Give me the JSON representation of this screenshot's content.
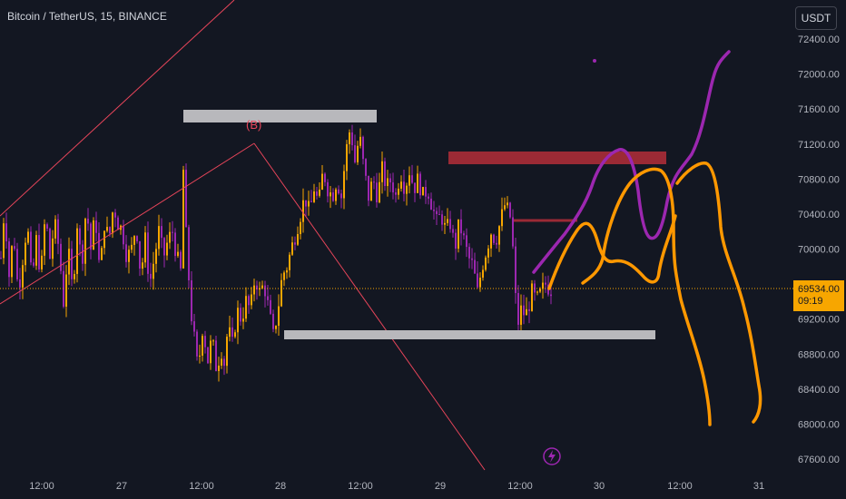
{
  "header": {
    "symbol_title": "Bitcoin / TetherUS, 15, BINANCE",
    "currency_button": "USDT"
  },
  "price_tag": {
    "price": "69534.00",
    "countdown": "09:19"
  },
  "annotations": {
    "wave_label": "(B)",
    "flash_icon": "lightning-icon"
  },
  "colors": {
    "background": "#131722",
    "candle_orange": "#f7a600",
    "candle_purple": "#9c27b0",
    "trendline": "#e8455a",
    "gray_box": "#b8b8bc",
    "red_box": "#9b2a35",
    "orange_path": "#ff9800",
    "purple_path": "#9c27b0",
    "axis_text": "#b2b5be"
  },
  "chart_data": {
    "type": "candlestick",
    "ylim": [
      67400,
      72600
    ],
    "y_ticks": [
      67600,
      68000,
      68400,
      68800,
      69200,
      69600,
      70000,
      70400,
      70800,
      71200,
      71600,
      72000,
      72400
    ],
    "y_tick_labels": [
      "67600.00",
      "68000.00",
      "68400.00",
      "68800.00",
      "69200.00",
      "69600.00",
      "70000.00",
      "70400.00",
      "70800.00",
      "71200.00",
      "71600.00",
      "72000.00",
      "72400.00"
    ],
    "x_tick_labels": [
      "12:00",
      "27",
      "12:00",
      "28",
      "12:00",
      "29",
      "12:00",
      "30",
      "12:00",
      "31"
    ],
    "current_price": 69534,
    "grid": false,
    "close_points": [
      [
        0,
        69900
      ],
      [
        4,
        70500
      ],
      [
        9,
        69700
      ],
      [
        14,
        70200
      ],
      [
        19,
        69500
      ],
      [
        24,
        69900
      ],
      [
        29,
        70300
      ],
      [
        34,
        69600
      ],
      [
        39,
        70100
      ],
      [
        44,
        69700
      ],
      [
        49,
        70400
      ],
      [
        54,
        69900
      ],
      [
        59,
        70300
      ],
      [
        64,
        70000
      ],
      [
        69,
        69400
      ],
      [
        74,
        70000
      ],
      [
        79,
        69500
      ],
      [
        84,
        70300
      ],
      [
        89,
        69800
      ],
      [
        94,
        70500
      ],
      [
        99,
        70000
      ],
      [
        104,
        70400
      ],
      [
        109,
        69700
      ],
      [
        114,
        70300
      ],
      [
        119,
        70100
      ],
      [
        124,
        70500
      ],
      [
        129,
        70300
      ],
      [
        134,
        70200
      ],
      [
        139,
        69900
      ],
      [
        144,
        70000
      ],
      [
        149,
        70300
      ],
      [
        154,
        69700
      ],
      [
        159,
        70100
      ],
      [
        164,
        69600
      ],
      [
        169,
        69900
      ],
      [
        174,
        70200
      ],
      [
        179,
        69900
      ],
      [
        184,
        70100
      ],
      [
        189,
        70200
      ],
      [
        194,
        69900
      ],
      [
        199,
        69700
      ],
      [
        201,
        70900
      ],
      [
        203,
        70300
      ],
      [
        205,
        70000
      ],
      [
        208,
        69500
      ],
      [
        211,
        69100
      ],
      [
        214,
        68900
      ],
      [
        217,
        68600
      ],
      [
        220,
        68900
      ],
      [
        223,
        69200
      ],
      [
        226,
        68800
      ],
      [
        229,
        68700
      ],
      [
        232,
        69000
      ],
      [
        235,
        68800
      ],
      [
        238,
        68600
      ],
      [
        242,
        68900
      ],
      [
        246,
        68700
      ],
      [
        250,
        69100
      ],
      [
        255,
        68900
      ],
      [
        260,
        69300
      ],
      [
        265,
        69200
      ],
      [
        270,
        69400
      ],
      [
        275,
        69300
      ],
      [
        280,
        69700
      ],
      [
        285,
        69500
      ],
      [
        290,
        69600
      ],
      [
        295,
        69300
      ],
      [
        300,
        69000
      ],
      [
        305,
        69300
      ],
      [
        310,
        69700
      ],
      [
        315,
        69800
      ],
      [
        320,
        70000
      ],
      [
        325,
        70200
      ],
      [
        330,
        70400
      ],
      [
        335,
        70600
      ],
      [
        340,
        70400
      ],
      [
        345,
        70700
      ],
      [
        350,
        70500
      ],
      [
        355,
        70900
      ],
      [
        360,
        70700
      ],
      [
        365,
        70600
      ],
      [
        370,
        70800
      ],
      [
        375,
        70600
      ],
      [
        380,
        71100
      ],
      [
        385,
        71400
      ],
      [
        390,
        71000
      ],
      [
        395,
        71300
      ],
      [
        400,
        70900
      ],
      [
        405,
        70600
      ],
      [
        410,
        70800
      ],
      [
        415,
        70600
      ],
      [
        420,
        70900
      ],
      [
        425,
        70700
      ],
      [
        430,
        70800
      ],
      [
        435,
        70600
      ],
      [
        440,
        70900
      ],
      [
        445,
        70700
      ],
      [
        450,
        70900
      ],
      [
        455,
        70700
      ],
      [
        460,
        70800
      ],
      [
        465,
        70600
      ],
      [
        470,
        70700
      ],
      [
        475,
        70500
      ],
      [
        480,
        70300
      ],
      [
        485,
        70400
      ],
      [
        490,
        70200
      ],
      [
        495,
        70300
      ],
      [
        500,
        70000
      ],
      [
        505,
        70300
      ],
      [
        510,
        70100
      ],
      [
        515,
        69900
      ],
      [
        520,
        69800
      ],
      [
        525,
        69500
      ],
      [
        530,
        69800
      ],
      [
        535,
        70000
      ],
      [
        540,
        70200
      ],
      [
        545,
        70100
      ],
      [
        550,
        70300
      ],
      [
        555,
        70500
      ],
      [
        560,
        70400
      ],
      [
        563,
        70300
      ],
      [
        565,
        69700
      ],
      [
        568,
        69300
      ],
      [
        571,
        69100
      ],
      [
        574,
        69400
      ],
      [
        577,
        69200
      ],
      [
        580,
        69300
      ],
      [
        585,
        69500
      ],
      [
        590,
        69400
      ],
      [
        595,
        69500
      ],
      [
        600,
        69600
      ],
      [
        605,
        69550
      ],
      [
        608,
        69534
      ]
    ]
  }
}
